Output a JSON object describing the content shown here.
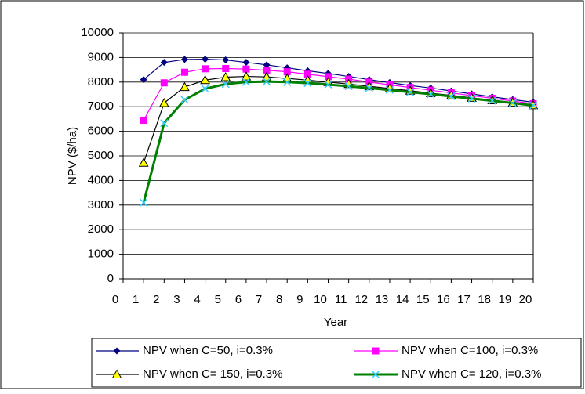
{
  "chart_data": {
    "type": "line",
    "x_label": "Year",
    "y_label": "NPV ($/ha)",
    "x": [
      1,
      2,
      3,
      4,
      5,
      6,
      7,
      8,
      9,
      10,
      11,
      12,
      13,
      14,
      15,
      16,
      17,
      18,
      19,
      20
    ],
    "xlim": [
      0,
      20
    ],
    "xticks": [
      0,
      1,
      2,
      3,
      4,
      5,
      6,
      7,
      8,
      9,
      10,
      11,
      12,
      13,
      14,
      15,
      16,
      17,
      18,
      19,
      20
    ],
    "ylim": [
      0,
      10000
    ],
    "yticks": [
      0,
      1000,
      2000,
      3000,
      4000,
      5000,
      6000,
      7000,
      8000,
      9000,
      10000
    ],
    "grid": true,
    "legend": "bottom",
    "series": [
      {
        "name": "NPV when C=50, i=0.3%",
        "color": "#000080",
        "marker": "diamond",
        "values": [
          8100,
          8800,
          8920,
          8930,
          8900,
          8800,
          8700,
          8580,
          8460,
          8350,
          8230,
          8100,
          7980,
          7860,
          7760,
          7640,
          7520,
          7400,
          7290,
          7180
        ]
      },
      {
        "name": "NPV when C=100, i=0.3%",
        "color": "#ff00ff",
        "marker": "square",
        "values": [
          6450,
          7970,
          8400,
          8540,
          8550,
          8530,
          8480,
          8420,
          8320,
          8220,
          8120,
          8000,
          7890,
          7780,
          7670,
          7560,
          7450,
          7340,
          7230,
          7120
        ]
      },
      {
        "name": "NPV when C= 150, i=0.3%",
        "color": "#000000",
        "marker": "triangle",
        "values": [
          4720,
          7150,
          7800,
          8080,
          8200,
          8230,
          8210,
          8150,
          8080,
          8000,
          7920,
          7830,
          7740,
          7650,
          7550,
          7460,
          7360,
          7260,
          7160,
          7060
        ]
      },
      {
        "name": "NPV when C= 120, i=0.3%",
        "color": "#008000",
        "marker": "x",
        "values": [
          3100,
          6330,
          7280,
          7730,
          7920,
          8000,
          8020,
          8000,
          7960,
          7900,
          7830,
          7760,
          7680,
          7590,
          7510,
          7420,
          7330,
          7240,
          7150,
          7050
        ]
      }
    ]
  }
}
